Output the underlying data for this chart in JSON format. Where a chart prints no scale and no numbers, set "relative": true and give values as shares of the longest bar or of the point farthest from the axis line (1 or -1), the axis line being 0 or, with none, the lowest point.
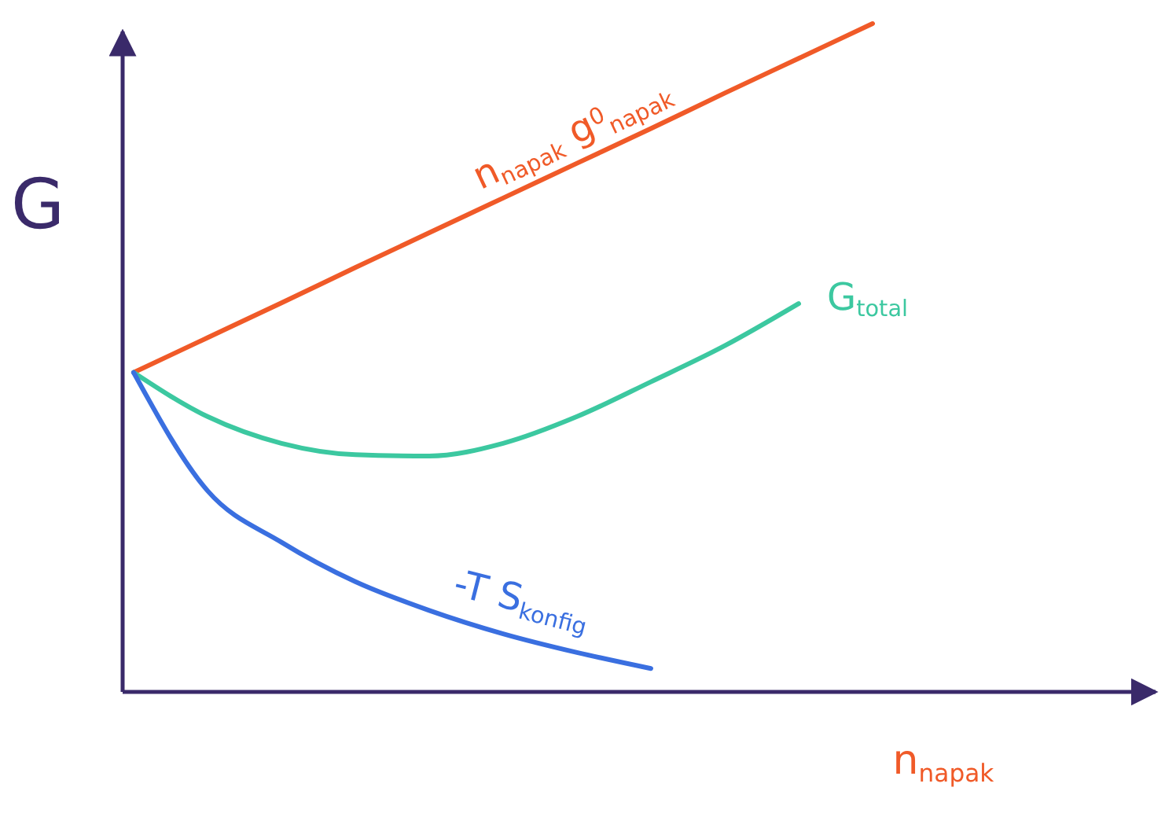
{
  "chart_data": {
    "type": "line",
    "relative": true,
    "xlabel": "n$_{napak}$",
    "ylabel": "G",
    "categories": [
      null,
      null,
      null,
      null,
      null,
      null,
      null,
      null,
      null,
      null,
      null
    ],
    "grid": false,
    "marker": "none",
    "line_style": "solid",
    "series": [
      {
        "name": "n$_{napak}$ g$^{0}$$_{napak}$",
        "color": "#f05a28",
        "values": [
          0.478,
          0.53,
          0.582,
          0.635,
          0.687,
          0.739,
          0.791,
          0.843,
          0.896,
          0.948,
          1.0
        ]
      },
      {
        "name": "G$_{total}$",
        "color": "#3cc8a0",
        "values": [
          0.478,
          0.412,
          0.372,
          0.355,
          0.353,
          0.372,
          0.412,
          0.464,
          0.518,
          0.581,
          null
        ]
      },
      {
        "name": "-T S$_{konfig}$",
        "color": "#3a6fe0",
        "values": [
          0.478,
          0.301,
          0.224,
          0.165,
          0.122,
          0.087,
          0.059,
          0.035,
          null,
          null,
          null
        ]
      }
    ]
  }
}
